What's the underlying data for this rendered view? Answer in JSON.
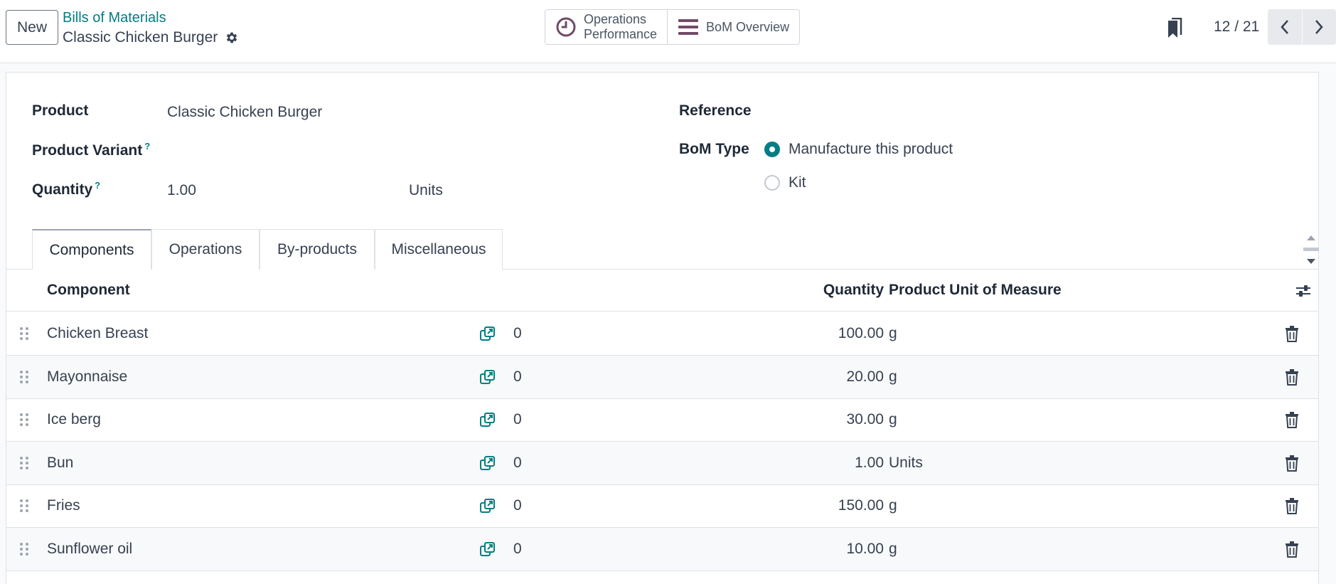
{
  "control_panel": {
    "new_label": "New",
    "breadcrumb_parent": "Bills of Materials",
    "breadcrumb_current": "Classic Chicken Burger",
    "smart_buttons": {
      "operations_performance": [
        "Operations",
        "Performance"
      ],
      "bom_overview": "BoM Overview"
    },
    "pager": {
      "value": "12 / 21"
    }
  },
  "form": {
    "product_label": "Product",
    "product_value": "Classic Chicken Burger",
    "variant_label": "Product Variant",
    "quantity_label": "Quantity",
    "quantity_value": "1.00",
    "quantity_uom": "Units",
    "help_mark": "?",
    "reference_label": "Reference",
    "bom_type_label": "BoM Type",
    "bom_type_options": [
      "Manufacture this product",
      "Kit"
    ],
    "bom_type_selected": "Manufacture this product"
  },
  "tabs": [
    "Components",
    "Operations",
    "By-products",
    "Miscellaneous"
  ],
  "active_tab": "Components",
  "table": {
    "headers": {
      "component": "Component",
      "quantity": "Quantity",
      "uom": "Product Unit of Measure"
    },
    "rows": [
      {
        "component": "Chicken Breast",
        "stock": "0",
        "quantity": "100.00",
        "uom": "g"
      },
      {
        "component": "Mayonnaise",
        "stock": "0",
        "quantity": "20.00",
        "uom": "g"
      },
      {
        "component": "Ice berg",
        "stock": "0",
        "quantity": "30.00",
        "uom": "g"
      },
      {
        "component": "Bun",
        "stock": "0",
        "quantity": "1.00",
        "uom": "Units"
      },
      {
        "component": "Fries",
        "stock": "0",
        "quantity": "150.00",
        "uom": "g"
      },
      {
        "component": "Sunflower oil",
        "stock": "0",
        "quantity": "10.00",
        "uom": "g"
      }
    ]
  },
  "icons": {
    "gear": "gear-icon",
    "clock": "clock-icon",
    "bars": "bars-icon",
    "bookmark": "bookmark-icon",
    "prev": "chevron-left-icon",
    "next": "chevron-right-icon",
    "drag": "drag-handle-icon",
    "external": "external-link-icon",
    "trash": "trash-icon",
    "optional_columns": "sliders-icon"
  },
  "colors": {
    "brand": "#017e84",
    "accent": "#714b67"
  }
}
